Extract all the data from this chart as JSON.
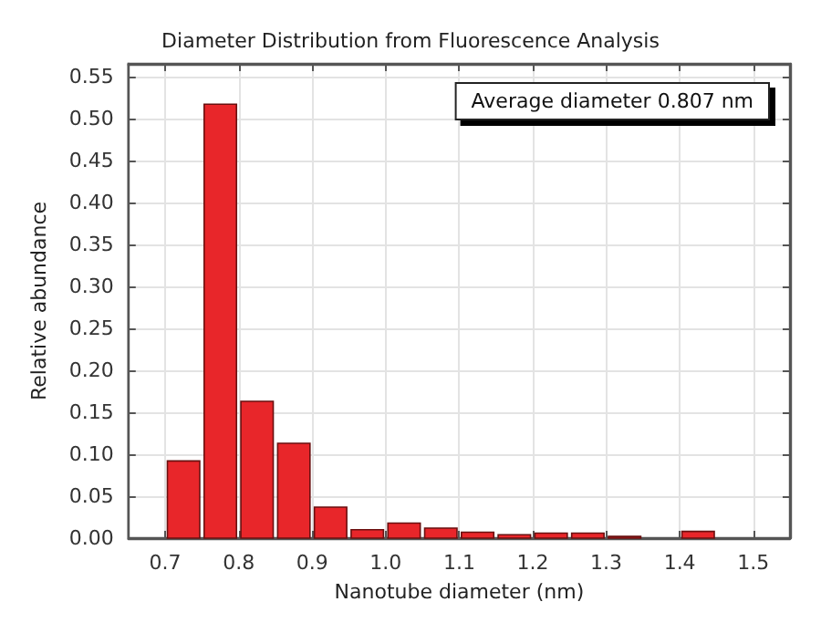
{
  "chart_data": {
    "type": "histogram",
    "title": "Diameter Distribution from Fluorescence Analysis",
    "xlabel": "Nanotube diameter (nm)",
    "ylabel": "Relative abundance",
    "bins": [
      0.7,
      0.75,
      0.8,
      0.85,
      0.9,
      0.95,
      1.0,
      1.05,
      1.1,
      1.15,
      1.2,
      1.25,
      1.3,
      1.35,
      1.4,
      1.45
    ],
    "values": [
      0.092,
      0.517,
      0.163,
      0.113,
      0.037,
      0.01,
      0.018,
      0.012,
      0.007,
      0.004,
      0.006,
      0.006,
      0.002,
      0,
      0.008
    ],
    "color": "#e8262a",
    "xlim": [
      0.65,
      1.55
    ],
    "xticks": [
      {
        "value": 0.7,
        "label": "0.7"
      },
      {
        "value": 0.8,
        "label": "0.8"
      },
      {
        "value": 0.9,
        "label": "0.9"
      },
      {
        "value": 1.0,
        "label": "1.0"
      },
      {
        "value": 1.1,
        "label": "1.1"
      },
      {
        "value": 1.2,
        "label": "1.2"
      },
      {
        "value": 1.3,
        "label": "1.3"
      },
      {
        "value": 1.4,
        "label": "1.4"
      },
      {
        "value": 1.5,
        "label": "1.5"
      }
    ],
    "ylim": [
      0,
      0.565
    ],
    "yticks": [
      {
        "value": 0,
        "label": "0.00"
      },
      {
        "value": 0.05,
        "label": "0.05"
      },
      {
        "value": 0.1,
        "label": "0.10"
      },
      {
        "value": 0.15,
        "label": "0.15"
      },
      {
        "value": 0.2,
        "label": "0.20"
      },
      {
        "value": 0.25,
        "label": "0.25"
      },
      {
        "value": 0.3,
        "label": "0.30"
      },
      {
        "value": 0.35,
        "label": "0.35"
      },
      {
        "value": 0.4,
        "label": "0.40"
      },
      {
        "value": 0.45,
        "label": "0.45"
      },
      {
        "value": 0.5,
        "label": "0.50"
      },
      {
        "value": 0.55,
        "label": "0.55"
      }
    ],
    "grid": true,
    "annotations": [
      "Average diameter 0.807 nm"
    ]
  }
}
